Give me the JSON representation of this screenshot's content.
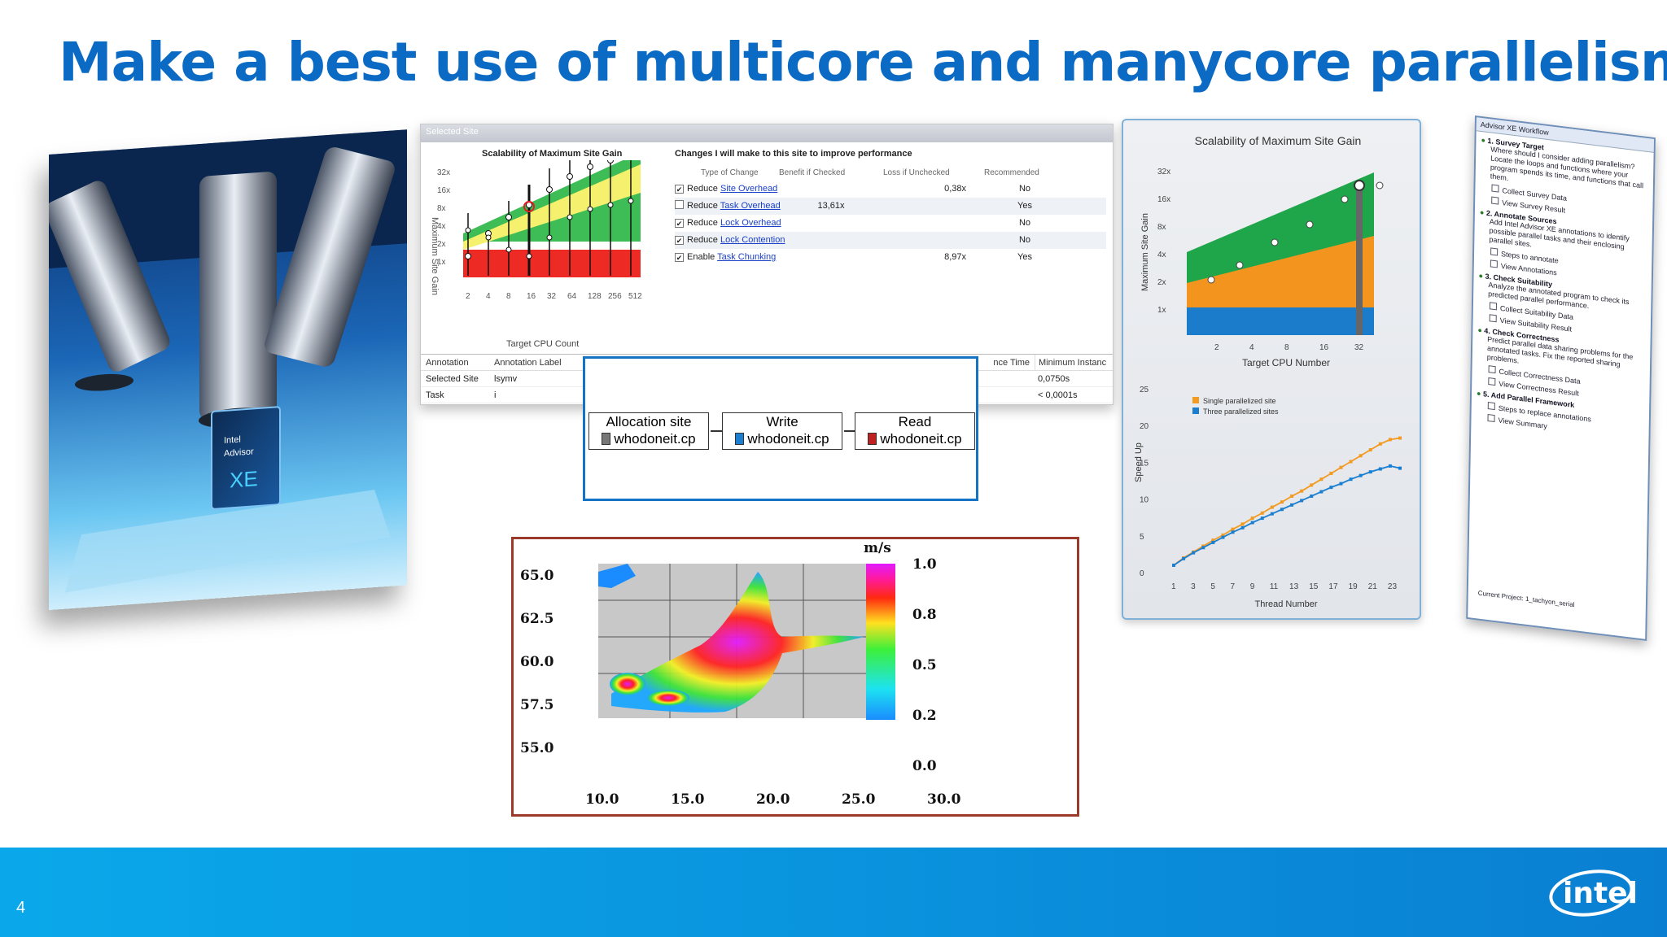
{
  "slide": {
    "title": "Make a best use of multicore and manycore parallelism potential",
    "page_number": "4",
    "brand": "intel"
  },
  "microscope": {
    "product_text": "Intel Advisor XE",
    "icon": "intel-advisor-box"
  },
  "advisor": {
    "header": "Selected Site",
    "left_chart": {
      "title": "Scalability of Maximum Site Gain",
      "ylabel": "Maximum Site Gain",
      "xlabel": "Target CPU Count",
      "yticks": [
        "32x",
        "16x",
        "8x",
        "4x",
        "2x",
        "1x"
      ],
      "xticks": [
        "2",
        "4",
        "8",
        "16",
        "32",
        "64",
        "128",
        "256",
        "512"
      ]
    },
    "changes_title": "Changes I will make to this site to improve performance",
    "columns": [
      "Type of Change",
      "Benefit if Checked",
      "Loss if Unchecked",
      "Recommended"
    ],
    "rows": [
      {
        "checked": "✔",
        "prefix": "Reduce",
        "link": "Site Overhead",
        "benefit": "",
        "loss": "0,38x",
        "rec": "No"
      },
      {
        "checked": "",
        "prefix": "Reduce",
        "link": "Task Overhead",
        "benefit": "13,61x",
        "loss": "",
        "rec": "Yes"
      },
      {
        "checked": "✔",
        "prefix": "Reduce",
        "link": "Lock Overhead",
        "benefit": "",
        "loss": "",
        "rec": "No"
      },
      {
        "checked": "✔",
        "prefix": "Reduce",
        "link": "Lock Contention",
        "benefit": "",
        "loss": "",
        "rec": "No"
      },
      {
        "checked": "✔",
        "prefix": "Enable",
        "link": "Task Chunking",
        "benefit": "",
        "loss": "8,97x",
        "rec": "Yes"
      }
    ],
    "bottom_table": {
      "headers": [
        "Annotation",
        "Annotation Label",
        "nce Time",
        "Minimum Instanc"
      ],
      "rows": [
        [
          "Selected Site",
          "lsymv",
          "",
          "0,0750s"
        ],
        [
          "Task",
          "i",
          "",
          "< 0,0001s"
        ]
      ]
    }
  },
  "flow": {
    "boxes": [
      {
        "label": "Allocation site",
        "file": "whodoneit.cp",
        "icon": "document-icon"
      },
      {
        "label": "Write",
        "file": "whodoneit.cp",
        "icon": "blue-document-icon"
      },
      {
        "label": "Read",
        "file": "whodoneit.cp",
        "icon": "red-document-icon"
      }
    ]
  },
  "heatmap": {
    "unit": "m/s",
    "scale": [
      "1.0",
      "0.8",
      "0.5",
      "0.2",
      "0.0"
    ],
    "yticks": [
      "65.0",
      "62.5",
      "60.0",
      "57.5",
      "55.0"
    ],
    "xticks": [
      "10.0",
      "15.0",
      "20.0",
      "25.0",
      "30.0"
    ],
    "degree": "°"
  },
  "right_chart": {
    "top_title": "Scalability of Maximum Site Gain",
    "top_ylabel": "Maximum Site Gain",
    "top_xlabel": "Target CPU Number",
    "top_yticks": [
      "32x",
      "16x",
      "8x",
      "4x",
      "2x",
      "1x"
    ],
    "top_xticks": [
      "2",
      "4",
      "8",
      "16",
      "32"
    ],
    "bottom_ylabel": "Speed Up",
    "bottom_xlabel": "Thread Number",
    "bottom_yticks": [
      "25",
      "20",
      "15",
      "10",
      "5",
      "0"
    ],
    "bottom_xticks": [
      "1",
      "3",
      "5",
      "7",
      "9",
      "11",
      "13",
      "15",
      "17",
      "19",
      "21",
      "23"
    ],
    "legend": [
      "Single parallelized site",
      "Three parallelized sites"
    ],
    "colors": {
      "single": "#f39a21",
      "three": "#1a7fd0"
    }
  },
  "chart_data": [
    {
      "type": "line",
      "title": "",
      "xlabel": "Thread Number",
      "ylabel": "Speed Up",
      "ylim": [
        0,
        25
      ],
      "x": [
        1,
        2,
        3,
        4,
        5,
        6,
        7,
        8,
        9,
        10,
        11,
        12,
        13,
        14,
        15,
        16,
        17,
        18,
        19,
        20,
        21,
        22,
        23,
        24
      ],
      "series": [
        {
          "name": "Single parallelized site",
          "values": [
            1.0,
            2.0,
            2.8,
            3.6,
            4.4,
            5.1,
            5.9,
            6.6,
            7.4,
            8.1,
            8.9,
            9.6,
            10.4,
            11.1,
            11.9,
            12.7,
            13.5,
            14.3,
            15.1,
            15.9,
            16.7,
            17.5,
            18.1,
            18.3
          ]
        },
        {
          "name": "Three parallelized sites",
          "values": [
            1.0,
            1.9,
            2.7,
            3.4,
            4.1,
            4.8,
            5.5,
            6.1,
            6.8,
            7.4,
            8.0,
            8.6,
            9.2,
            9.8,
            10.4,
            11.0,
            11.6,
            12.1,
            12.7,
            13.2,
            13.7,
            14.1,
            14.5,
            14.2
          ]
        }
      ]
    }
  ],
  "workflow": {
    "title": "Advisor XE Workflow",
    "steps": [
      {
        "title": "1. Survey Target",
        "text": "Where should I consider adding parallelism? Locate the loops and functions where your program spends its time, and functions that call them.",
        "actions": [
          "Collect Survey Data",
          "View Survey Result"
        ]
      },
      {
        "title": "2. Annotate Sources",
        "text": "Add Intel Advisor XE annotations to identify possible parallel tasks and their enclosing parallel sites.",
        "actions": [
          "Steps to annotate",
          "View Annotations"
        ]
      },
      {
        "title": "3. Check Suitability",
        "text": "Analyze the annotated program to check its predicted parallel performance.",
        "actions": [
          "Collect Suitability Data",
          "View Suitability Result"
        ]
      },
      {
        "title": "4. Check Correctness",
        "text": "Predict parallel data sharing problems for the annotated tasks. Fix the reported sharing problems.",
        "actions": [
          "Collect Correctness Data",
          "View Correctness Result"
        ]
      },
      {
        "title": "5. Add Parallel Framework",
        "text": "",
        "actions": [
          "Steps to replace annotations",
          "View Summary"
        ]
      }
    ],
    "footer": "Current Project: 1_tachyon_serial"
  }
}
